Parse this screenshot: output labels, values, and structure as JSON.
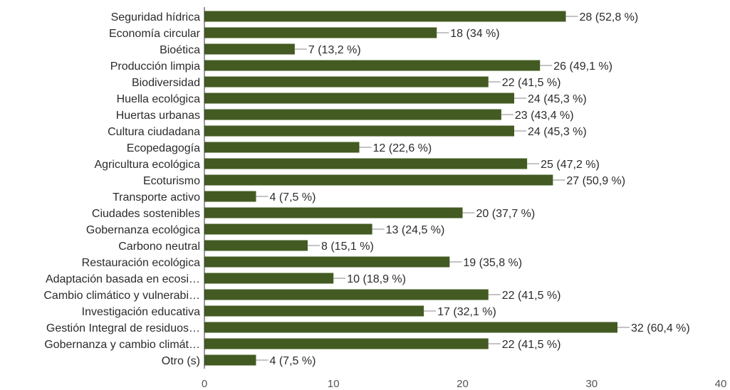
{
  "chart_data": {
    "type": "bar",
    "orientation": "horizontal",
    "categories": [
      "Seguridad hídrica",
      "Economía circular",
      "Bioética",
      "Producción limpia",
      "Biodiversidad",
      "Huella ecológica",
      "Huertas urbanas",
      "Cultura ciudadana",
      "Ecopedagogía",
      "Agricultura ecológica",
      "Ecoturismo",
      "Transporte activo",
      "Ciudades sostenibles",
      "Gobernanza ecológica",
      "Carbono neutral",
      "Restauración ecológica",
      "Adaptación basada en ecosi…",
      "Cambio climático y vulnerabi…",
      "Investigación educativa",
      "Gestión Integral de residuos…",
      "Gobernanza y cambio climát…",
      "Otro (s)"
    ],
    "values": [
      28,
      18,
      7,
      26,
      22,
      24,
      23,
      24,
      12,
      25,
      27,
      4,
      20,
      13,
      8,
      19,
      10,
      22,
      17,
      32,
      22,
      4
    ],
    "data_labels": [
      "28 (52,8 %)",
      "18 (34 %)",
      "7 (13,2 %)",
      "26 (49,1 %)",
      "22 (41,5 %)",
      "24 (45,3 %)",
      "23 (43,4 %)",
      "24 (45,3 %)",
      "12 (22,6 %)",
      "25 (47,2 %)",
      "27 (50,9 %)",
      "4 (7,5 %)",
      "20 (37,7 %)",
      "13 (24,5 %)",
      "8 (15,1 %)",
      "19 (35,8 %)",
      "10 (18,9 %)",
      "22 (41,5 %)",
      "17 (32,1 %)",
      "32 (60,4 %)",
      "22 (41,5 %)",
      "4 (7,5 %)"
    ],
    "xticks": [
      "0",
      "10",
      "20",
      "30",
      "40"
    ],
    "xlim": [
      0,
      40
    ],
    "grid": false,
    "colors": {
      "bar": "#435b22",
      "leader": "#8a8a8a",
      "axis": "#333333"
    }
  }
}
